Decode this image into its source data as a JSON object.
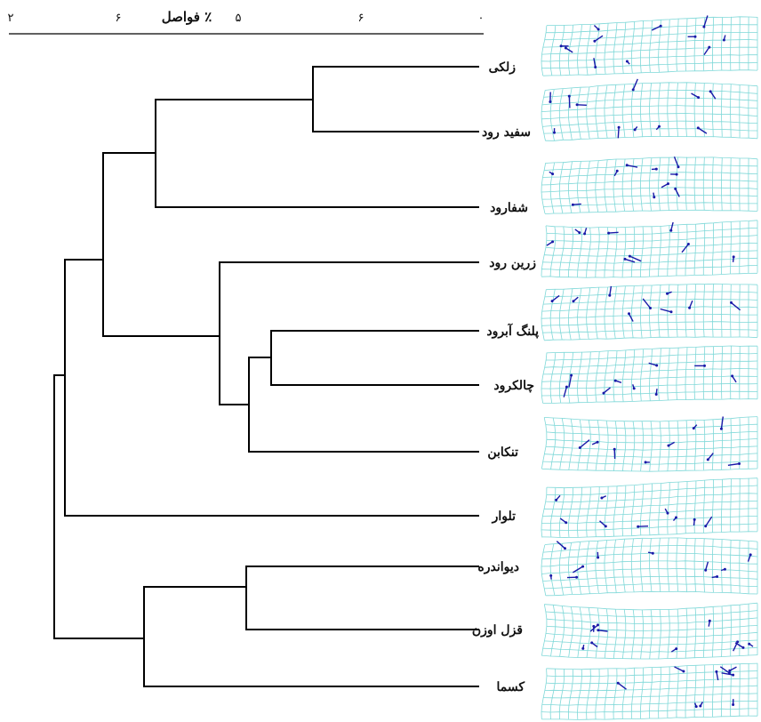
{
  "axis": {
    "title": "فواصل ٪",
    "ticks": [
      "۲",
      "۶",
      "۵",
      "۶",
      "۰"
    ]
  },
  "leaves": [
    {
      "id": "zalki",
      "label": "زلکی"
    },
    {
      "id": "sefidrud",
      "label": "سفید رود"
    },
    {
      "id": "shafarud",
      "label": "شفارود"
    },
    {
      "id": "zarrinrud",
      "label": "زرین رود"
    },
    {
      "id": "palangabrud",
      "label": "پلنگ آبرود"
    },
    {
      "id": "chalakrud",
      "label": "چالکرود"
    },
    {
      "id": "tonekabon",
      "label": "تنکابن"
    },
    {
      "id": "talvar",
      "label": "تلوار"
    },
    {
      "id": "divandareh",
      "label": "دیواندره"
    },
    {
      "id": "ghezelozan",
      "label": "قزل اوزن"
    },
    {
      "id": "kasma",
      "label": "کسما"
    }
  ],
  "colors": {
    "line": "#000000",
    "grid": "#7fd8d8",
    "vector": "#1a1aa8"
  }
}
